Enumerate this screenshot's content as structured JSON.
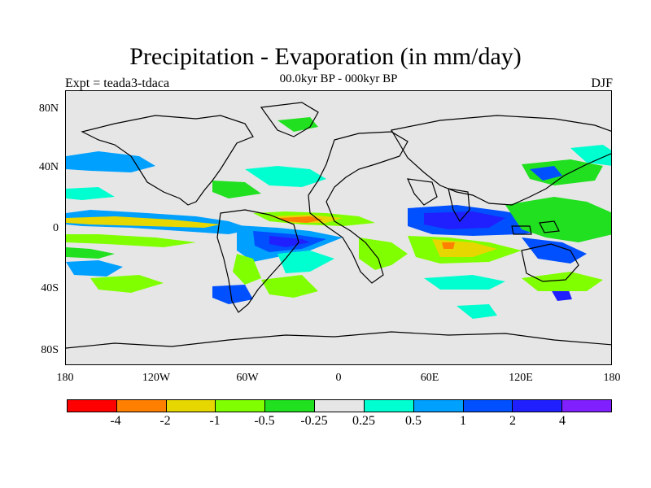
{
  "title": "Precipitation - Evaporation (in mm/day)",
  "subtitle": "00.0kyr BP - 000kyr BP",
  "left_label": "Expt = teada3-tdaca",
  "right_label": "DJF",
  "lat_labels": [
    "80N",
    "40N",
    "0",
    "40S",
    "80S"
  ],
  "lon_labels": [
    "180",
    "120W",
    "60W",
    "0",
    "60E",
    "120E",
    "180"
  ],
  "colorbar": {
    "colors": [
      "#ff0000",
      "#ff8000",
      "#e6d700",
      "#80ff00",
      "#20e020",
      "#e6e6e6",
      "#00ffd0",
      "#00a0ff",
      "#0050ff",
      "#2020ff",
      "#8020ff"
    ],
    "labels": [
      "-4",
      "-2",
      "-1",
      "-0.5",
      "-0.25",
      "0.25",
      "0.5",
      "1",
      "2",
      "4"
    ]
  },
  "map_colors": {
    "background": "#e6e6e6",
    "coast": "#000000"
  }
}
